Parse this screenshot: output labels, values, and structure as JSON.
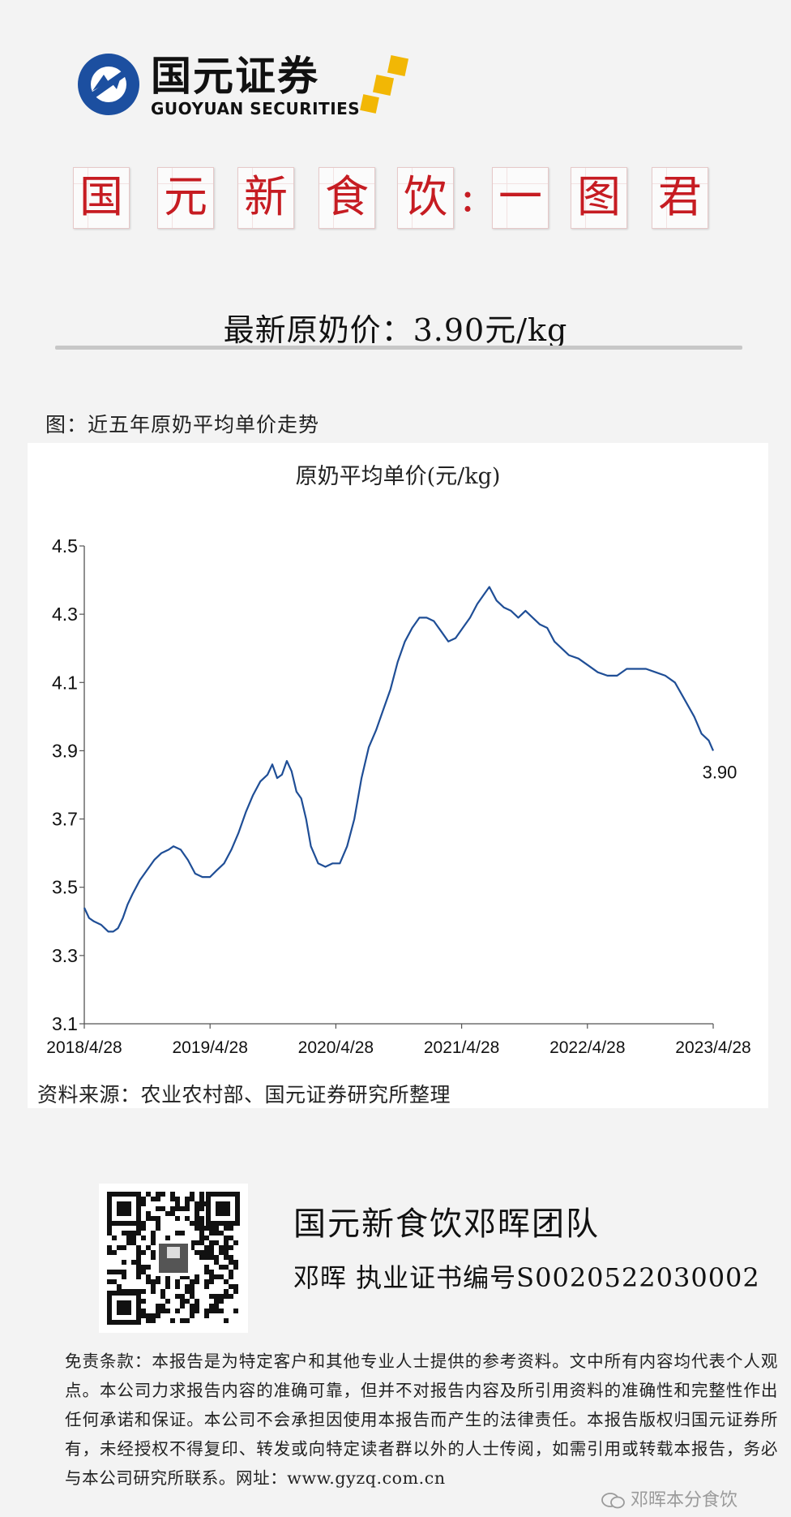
{
  "brand": {
    "name_cn": "国元证券",
    "name_en": "GUOYUAN SECURITIES"
  },
  "title_tiles": [
    "国",
    "元",
    "新",
    "食",
    "饮",
    ":",
    "一",
    "图",
    "君"
  ],
  "headline": "最新原奶价：3.90元/kg",
  "figure_caption": "图：近五年原奶平均单价走势",
  "source_note": "资料来源：农业农村部、国元证券研究所整理",
  "team": {
    "name": "国元新食饮邓晖团队",
    "cert_line": "邓晖  执业证书编号S0020522030002"
  },
  "disclaimer": "免责条款：本报告是为特定客户和其他专业人士提供的参考资料。文中所有内容均代表个人观点。本公司力求报告内容的准确可靠，但并不对报告内容及所引用资料的准确性和完整性作出任何承诺和保证。本公司不会承担因使用本报告而产生的法律责任。本报告版权归国元证券所有，未经授权不得复印、转发或向特定读者群以外的人士传阅，如需引用或转载本报告，务必与本公司研究所联系。网址：www.gyzq.com.cn",
  "watermark": "邓晖本分食饮",
  "colors": {
    "line": "#1f4e96",
    "title_red": "#c61c22",
    "logo_blue": "#1c4fa0",
    "logo_gold": "#f2b705"
  },
  "chart_data": {
    "type": "line",
    "title": "原奶平均单价(元/kg)",
    "x_tick_labels": [
      "2018/4/28",
      "2019/4/28",
      "2020/4/28",
      "2021/4/28",
      "2022/4/28",
      "2023/4/28"
    ],
    "x_range": [
      "2018-04-28",
      "2023-04-28"
    ],
    "ylim": [
      3.1,
      4.5
    ],
    "y_ticks": [
      3.1,
      3.3,
      3.5,
      3.7,
      3.9,
      4.1,
      4.3,
      4.5
    ],
    "grid": false,
    "legend": "none",
    "series": [
      {
        "end_label": "3.90",
        "points": [
          [
            "2018-04-28",
            3.44
          ],
          [
            "2018-05-12",
            3.41
          ],
          [
            "2018-05-26",
            3.4
          ],
          [
            "2018-06-16",
            3.39
          ],
          [
            "2018-07-07",
            3.37
          ],
          [
            "2018-07-21",
            3.37
          ],
          [
            "2018-08-04",
            3.38
          ],
          [
            "2018-08-18",
            3.41
          ],
          [
            "2018-09-01",
            3.45
          ],
          [
            "2018-09-15",
            3.48
          ],
          [
            "2018-10-06",
            3.52
          ],
          [
            "2018-10-27",
            3.55
          ],
          [
            "2018-11-17",
            3.58
          ],
          [
            "2018-12-08",
            3.6
          ],
          [
            "2018-12-29",
            3.61
          ],
          [
            "2019-01-12",
            3.62
          ],
          [
            "2019-02-02",
            3.61
          ],
          [
            "2019-02-23",
            3.58
          ],
          [
            "2019-03-16",
            3.54
          ],
          [
            "2019-04-06",
            3.53
          ],
          [
            "2019-04-28",
            3.53
          ],
          [
            "2019-05-18",
            3.55
          ],
          [
            "2019-06-08",
            3.57
          ],
          [
            "2019-06-29",
            3.61
          ],
          [
            "2019-07-20",
            3.66
          ],
          [
            "2019-08-10",
            3.72
          ],
          [
            "2019-08-31",
            3.77
          ],
          [
            "2019-09-21",
            3.81
          ],
          [
            "2019-10-12",
            3.83
          ],
          [
            "2019-10-26",
            3.86
          ],
          [
            "2019-11-09",
            3.82
          ],
          [
            "2019-11-23",
            3.83
          ],
          [
            "2019-12-07",
            3.87
          ],
          [
            "2019-12-21",
            3.84
          ],
          [
            "2020-01-04",
            3.78
          ],
          [
            "2020-01-18",
            3.76
          ],
          [
            "2020-02-01",
            3.7
          ],
          [
            "2020-02-15",
            3.62
          ],
          [
            "2020-03-07",
            3.57
          ],
          [
            "2020-03-28",
            3.56
          ],
          [
            "2020-04-18",
            3.57
          ],
          [
            "2020-05-09",
            3.57
          ],
          [
            "2020-05-30",
            3.62
          ],
          [
            "2020-06-20",
            3.7
          ],
          [
            "2020-07-11",
            3.82
          ],
          [
            "2020-08-01",
            3.91
          ],
          [
            "2020-08-22",
            3.96
          ],
          [
            "2020-09-12",
            4.02
          ],
          [
            "2020-10-03",
            4.08
          ],
          [
            "2020-10-24",
            4.16
          ],
          [
            "2020-11-14",
            4.22
          ],
          [
            "2020-12-05",
            4.26
          ],
          [
            "2020-12-26",
            4.29
          ],
          [
            "2021-01-16",
            4.29
          ],
          [
            "2021-02-06",
            4.28
          ],
          [
            "2021-02-27",
            4.25
          ],
          [
            "2021-03-20",
            4.22
          ],
          [
            "2021-04-10",
            4.23
          ],
          [
            "2021-05-01",
            4.26
          ],
          [
            "2021-05-22",
            4.29
          ],
          [
            "2021-06-12",
            4.33
          ],
          [
            "2021-07-03",
            4.36
          ],
          [
            "2021-07-17",
            4.38
          ],
          [
            "2021-08-07",
            4.34
          ],
          [
            "2021-08-28",
            4.32
          ],
          [
            "2021-09-18",
            4.31
          ],
          [
            "2021-10-09",
            4.29
          ],
          [
            "2021-10-30",
            4.31
          ],
          [
            "2021-11-20",
            4.29
          ],
          [
            "2021-12-11",
            4.27
          ],
          [
            "2022-01-01",
            4.26
          ],
          [
            "2022-01-22",
            4.22
          ],
          [
            "2022-02-12",
            4.2
          ],
          [
            "2022-03-05",
            4.18
          ],
          [
            "2022-04-02",
            4.17
          ],
          [
            "2022-04-30",
            4.15
          ],
          [
            "2022-05-28",
            4.13
          ],
          [
            "2022-06-25",
            4.12
          ],
          [
            "2022-07-23",
            4.12
          ],
          [
            "2022-08-20",
            4.14
          ],
          [
            "2022-09-17",
            4.14
          ],
          [
            "2022-10-15",
            4.14
          ],
          [
            "2022-11-12",
            4.13
          ],
          [
            "2022-12-10",
            4.12
          ],
          [
            "2023-01-07",
            4.1
          ],
          [
            "2023-02-04",
            4.05
          ],
          [
            "2023-03-04",
            4.0
          ],
          [
            "2023-03-25",
            3.95
          ],
          [
            "2023-04-15",
            3.93
          ],
          [
            "2023-04-28",
            3.9
          ]
        ]
      }
    ]
  }
}
